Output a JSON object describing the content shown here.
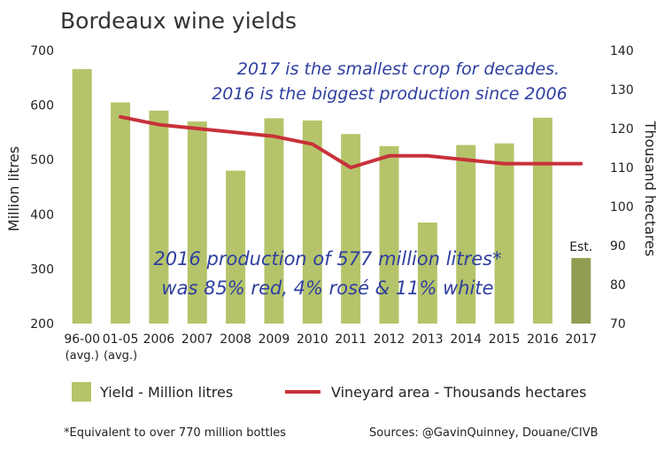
{
  "chart_data": {
    "type": "bar",
    "title": "Bordeaux wine yields",
    "categories": [
      "96-00",
      "01-05",
      "2006",
      "2007",
      "2008",
      "2009",
      "2010",
      "2011",
      "2012",
      "2013",
      "2014",
      "2015",
      "2016",
      "2017"
    ],
    "category_sublabels": [
      "(avg.)",
      "(avg.)",
      "",
      "",
      "",
      "",
      "",
      "",
      "",
      "",
      "",
      "",
      "",
      ""
    ],
    "series": [
      {
        "name": "Yield - Million litres",
        "type": "bar",
        "axis": "left",
        "values": [
          666,
          605,
          590,
          570,
          480,
          576,
          572,
          547,
          525,
          385,
          527,
          530,
          577,
          320
        ],
        "color": "#b5c46a",
        "estimate_color": "#8f9e52"
      },
      {
        "name": "Vineyard area - Thousands hectares",
        "type": "line",
        "axis": "right",
        "values": [
          null,
          123,
          121,
          120,
          119,
          118,
          116,
          110,
          113,
          113,
          112,
          111,
          111,
          111
        ],
        "color": "#c8313a"
      }
    ],
    "ylabel": "Million litres",
    "ylim": [
      200,
      700
    ],
    "yticks": [
      200,
      300,
      400,
      500,
      600,
      700
    ],
    "y2label": "Thousand hectares",
    "y2lim": [
      70,
      140
    ],
    "y2ticks": [
      70,
      80,
      90,
      100,
      110,
      120,
      130,
      140
    ],
    "estimate_label": "Est.",
    "estimate_index": 13,
    "annotations": [
      "2017 is the smallest crop for decades.",
      "2016 is the biggest production since 2006",
      "2016 production of 577 million litres*",
      "was 85% red, 4% rosé & 11% white"
    ],
    "grid": false,
    "legend_position": "bottom"
  },
  "footnote": "*Equivalent to over 770 million bottles",
  "sources": "Sources: @GavinQuinney, Douane/CIVB"
}
